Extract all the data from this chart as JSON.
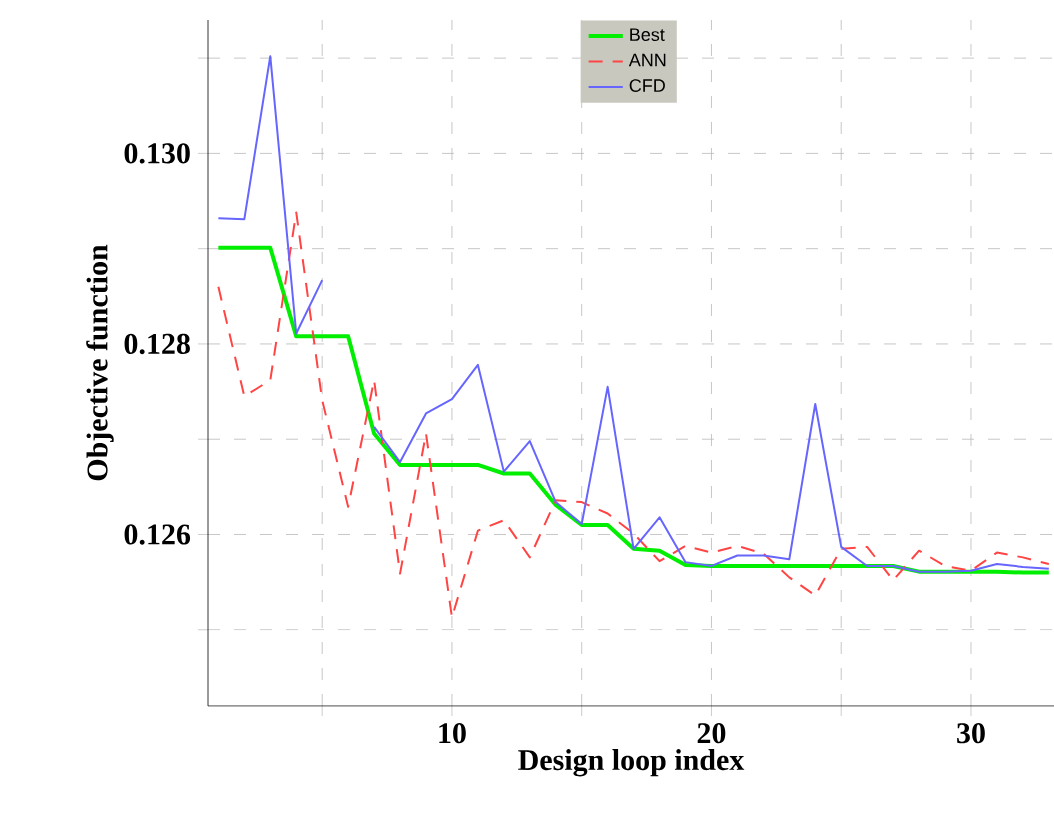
{
  "chart_data": {
    "type": "line",
    "xlabel": "Design loop index",
    "ylabel": "Objective function",
    "x": [
      1,
      2,
      3,
      4,
      5,
      6,
      7,
      8,
      9,
      10,
      11,
      12,
      13,
      14,
      15,
      16,
      17,
      18,
      19,
      20,
      21,
      22,
      23,
      24,
      25,
      26,
      27,
      28,
      29,
      30,
      31,
      32,
      33
    ],
    "xlim": [
      0.6,
      33.2
    ],
    "ylim": [
      0.1242,
      0.1314
    ],
    "xticks": [
      {
        "value": 5,
        "label": null
      },
      10,
      {
        "value": 15,
        "label": null
      },
      20,
      {
        "value": 25,
        "label": null
      },
      30
    ],
    "yticks": [
      {
        "value": 0.125,
        "label": null
      },
      0.126,
      {
        "value": 0.127,
        "label": null
      },
      0.128,
      {
        "value": 0.129,
        "label": null
      },
      {
        "value": 0.13,
        "label": "0.130"
      },
      {
        "value": 0.131,
        "label": null
      }
    ],
    "grid": true,
    "legend": "top",
    "series": [
      {
        "name": "Best",
        "color": "#00ee00",
        "line_style": "solid",
        "values": [
          0.12901,
          0.12901,
          0.12901,
          0.12808,
          0.12808,
          0.12808,
          0.12706,
          0.12673,
          0.12673,
          0.12673,
          0.12673,
          0.12664,
          0.12664,
          0.12631,
          0.1261,
          0.1261,
          0.12585,
          0.12583,
          0.12568,
          0.12567,
          0.12567,
          0.12567,
          0.12567,
          0.12567,
          0.12567,
          0.12567,
          0.12567,
          0.12561,
          0.12561,
          0.12561,
          0.12561,
          0.1256,
          0.1256
        ]
      },
      {
        "name": "ANN",
        "color": "#ff4444",
        "line_style": "dashed",
        "values": [
          0.1286,
          0.12745,
          0.12762,
          0.12938,
          0.12741,
          0.12629,
          0.12762,
          0.12559,
          0.12706,
          0.12513,
          0.12604,
          0.12615,
          0.12576,
          0.12636,
          0.12634,
          0.12622,
          0.12601,
          0.12572,
          0.12588,
          0.12581,
          0.12588,
          0.1258,
          0.12555,
          0.12536,
          0.12585,
          0.12587,
          0.12552,
          0.12583,
          0.12567,
          0.12562,
          0.12581,
          0.12576,
          0.12569
        ]
      },
      {
        "name": "CFD",
        "color": "#6666ff",
        "line_style": "solid",
        "x": [
          1,
          2,
          3,
          4,
          5,
          6,
          7,
          8,
          9,
          10,
          11,
          12,
          13,
          14,
          15,
          16,
          17,
          18,
          19,
          20,
          21,
          22,
          23,
          24,
          25,
          26,
          27,
          28,
          29,
          30,
          31,
          32,
          33
        ],
        "values": [
          0.12932,
          0.12931,
          0.13102,
          0.12811,
          0.12867,
          null,
          0.12713,
          0.12676,
          0.12727,
          0.12742,
          0.12778,
          0.12666,
          0.12698,
          0.12634,
          0.12611,
          0.12755,
          0.12585,
          0.12618,
          0.12571,
          0.12567,
          0.12578,
          0.12578,
          0.12574,
          0.12737,
          0.12587,
          0.12567,
          0.12567,
          0.12561,
          0.12561,
          0.12562,
          0.12569,
          0.12566,
          0.12564
        ]
      }
    ]
  }
}
